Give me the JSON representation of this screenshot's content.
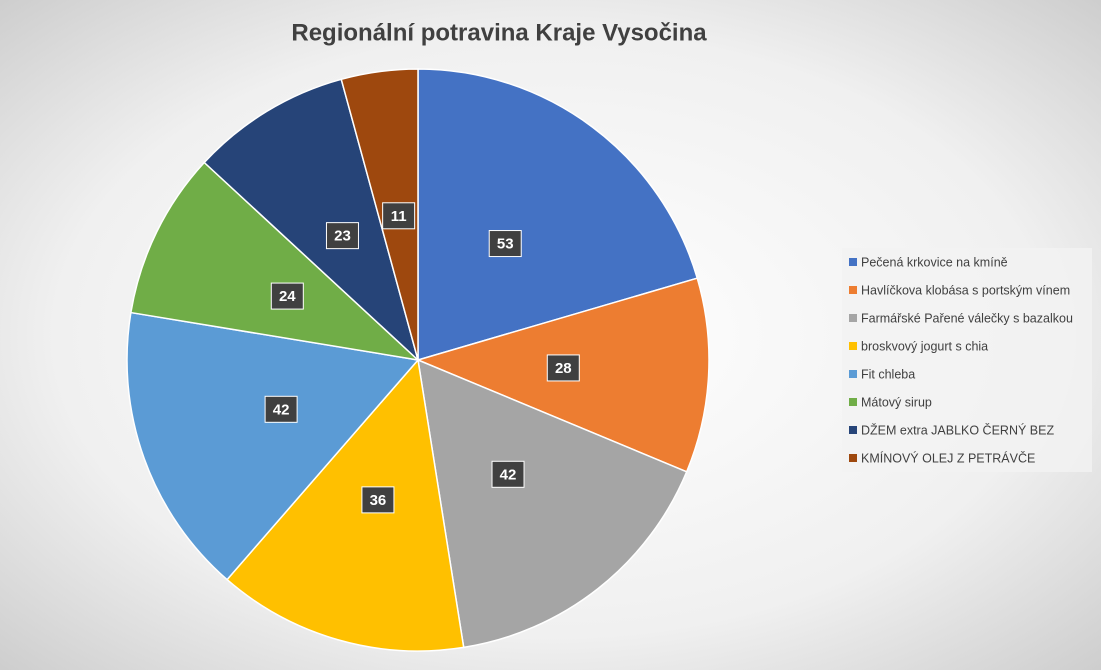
{
  "chart_data": {
    "type": "pie",
    "title": "Regionální potravina Kraje Vysočina",
    "categories": [
      "Pečená krkovice na kmíně",
      "Havlíčkova klobása s portským vínem",
      "Farmářské Pařené válečky s bazalkou",
      "broskvový jogurt s chia",
      "Fit chleba",
      "Mátový sirup",
      "DŽEM extra JABLKO ČERNÝ BEZ",
      "KMÍNOVÝ OLEJ Z PETRÁVČE"
    ],
    "values": [
      53,
      28,
      42,
      36,
      42,
      24,
      23,
      11
    ],
    "colors": [
      "#4472c4",
      "#ed7d31",
      "#a5a5a5",
      "#ffc000",
      "#5b9bd5",
      "#70ad47",
      "#264478",
      "#9e480e"
    ],
    "legend": "right"
  }
}
